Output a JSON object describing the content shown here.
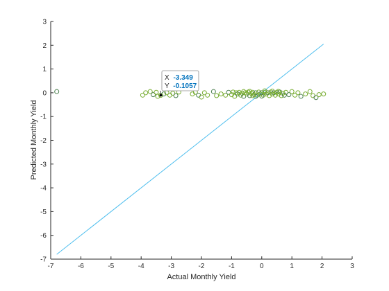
{
  "chart_data": {
    "type": "scatter",
    "title": "",
    "xlabel": "Actual Monthly Yield",
    "ylabel": "Predicted Monthly Yield",
    "xlim": [
      -7,
      3
    ],
    "ylim": [
      -7,
      3
    ],
    "xticks": [
      -7,
      -6,
      -5,
      -4,
      -3,
      -2,
      -1,
      0,
      1,
      2,
      3
    ],
    "yticks": [
      -7,
      -6,
      -5,
      -4,
      -3,
      -2,
      -1,
      0,
      1,
      2,
      3
    ],
    "grid": false,
    "colors": {
      "points_light": "#77ac30",
      "points_dark": "#4d8050",
      "reference_line": "#4dbeee",
      "datatip_value": "#0072bd"
    },
    "reference_line": {
      "x": [
        -6.8,
        2.05
      ],
      "y": [
        -6.8,
        2.05
      ]
    },
    "scatter_points": [
      [
        -6.8,
        0.05
      ],
      [
        -3.95,
        -0.1
      ],
      [
        -3.85,
        0.0
      ],
      [
        -3.7,
        0.05
      ],
      [
        -3.6,
        -0.08
      ],
      [
        -3.5,
        0.02
      ],
      [
        -3.45,
        -0.15
      ],
      [
        -3.349,
        -0.1057
      ],
      [
        -3.25,
        -0.05
      ],
      [
        -3.15,
        0.0
      ],
      [
        -3.05,
        -0.1
      ],
      [
        -2.95,
        -0.02
      ],
      [
        -2.85,
        -0.12
      ],
      [
        -2.75,
        0.03
      ],
      [
        -2.3,
        -0.05
      ],
      [
        -2.2,
        0.02
      ],
      [
        -2.1,
        -0.1
      ],
      [
        -2.0,
        -0.18
      ],
      [
        -1.9,
        0.0
      ],
      [
        -1.8,
        -0.1
      ],
      [
        -1.6,
        0.05
      ],
      [
        -1.5,
        -0.12
      ],
      [
        -1.35,
        -0.05
      ],
      [
        -1.2,
        -0.1
      ],
      [
        -1.1,
        0.02
      ],
      [
        -1.0,
        -0.08
      ],
      [
        -0.9,
        -0.15
      ],
      [
        -0.85,
        0.0
      ],
      [
        -0.8,
        -0.05
      ],
      [
        -0.75,
        0.02
      ],
      [
        -0.7,
        -0.1
      ],
      [
        -0.65,
        -0.02
      ],
      [
        -0.6,
        -0.15
      ],
      [
        -0.55,
        0.0
      ],
      [
        -0.5,
        -0.05
      ],
      [
        -0.45,
        0.03
      ],
      [
        -0.4,
        -0.12
      ],
      [
        -0.35,
        -0.02
      ],
      [
        -0.3,
        0.02
      ],
      [
        -0.25,
        -0.08
      ],
      [
        -0.2,
        0.0
      ],
      [
        -0.15,
        -0.1
      ],
      [
        -0.1,
        0.03
      ],
      [
        -0.05,
        -0.05
      ],
      [
        0.0,
        0.0
      ],
      [
        0.05,
        -0.1
      ],
      [
        0.1,
        0.02
      ],
      [
        0.15,
        -0.05
      ],
      [
        0.2,
        0.0
      ],
      [
        0.25,
        -0.12
      ],
      [
        0.3,
        0.03
      ],
      [
        0.35,
        -0.05
      ],
      [
        0.4,
        0.0
      ],
      [
        0.45,
        -0.1
      ],
      [
        0.5,
        0.02
      ],
      [
        0.55,
        -0.05
      ],
      [
        0.6,
        0.03
      ],
      [
        0.65,
        -0.12
      ],
      [
        0.7,
        -0.02
      ],
      [
        0.8,
        0.02
      ],
      [
        0.9,
        -0.08
      ],
      [
        1.0,
        0.05
      ],
      [
        1.1,
        -0.1
      ],
      [
        1.2,
        0.0
      ],
      [
        1.3,
        -0.15
      ],
      [
        1.45,
        -0.05
      ],
      [
        1.6,
        0.05
      ],
      [
        1.7,
        -0.12
      ],
      [
        1.8,
        -0.2
      ],
      [
        1.9,
        -0.08
      ],
      [
        2.05,
        -0.05
      ],
      [
        -0.6,
        0.05
      ],
      [
        -0.2,
        -0.15
      ],
      [
        0.1,
        0.08
      ],
      [
        0.35,
        0.07
      ],
      [
        -0.4,
        0.06
      ],
      [
        0.75,
        -0.1
      ],
      [
        -0.95,
        0.03
      ],
      [
        0.55,
        0.06
      ],
      [
        -0.3,
        -0.12
      ],
      [
        0.0,
        -0.14
      ]
    ]
  },
  "datatip": {
    "x_label": "X",
    "x_value": "-3.349",
    "y_label": "Y",
    "y_value": "-0.1057"
  }
}
